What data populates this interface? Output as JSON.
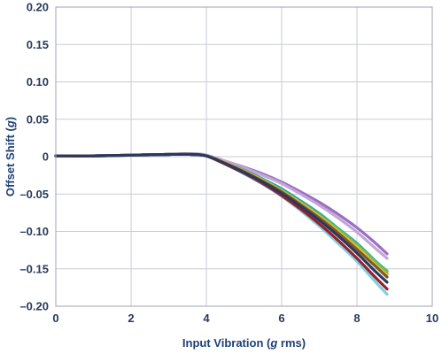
{
  "chart_data": {
    "type": "line",
    "title": "",
    "xlabel": {
      "prefix": "Input Vibration (",
      "var": "g",
      "suffix": " rms)"
    },
    "ylabel": {
      "prefix": "Offset Shift (",
      "var": "g",
      "suffix": ")"
    },
    "xlim": [
      0,
      10
    ],
    "ylim": [
      -0.2,
      0.2
    ],
    "x_ticks": [
      0,
      2,
      4,
      6,
      8,
      10
    ],
    "x_tick_labels": [
      "0",
      "2",
      "4",
      "6",
      "8",
      "10"
    ],
    "y_ticks": [
      0.2,
      0.15,
      0.1,
      0.05,
      0,
      -0.05,
      -0.1,
      -0.15,
      -0.2
    ],
    "y_tick_labels": [
      "0.20",
      "0.15",
      "0.10",
      "0.05",
      "0",
      "–0.05",
      "–0.10",
      "–0.15",
      "–0.20"
    ],
    "grid": true,
    "legend": "none",
    "series": [
      {
        "color": "#9a6fc0",
        "x": [
          0,
          1,
          2,
          3,
          3.6,
          4,
          4.5,
          5,
          5.5,
          6,
          6.5,
          7,
          7.5,
          8,
          8.5,
          8.8
        ],
        "y": [
          0.001,
          0.001,
          0.002,
          0.003,
          0.004,
          0.002,
          -0.006,
          -0.014,
          -0.023,
          -0.034,
          -0.047,
          -0.061,
          -0.077,
          -0.095,
          -0.116,
          -0.13
        ]
      },
      {
        "color": "#c3a5d8",
        "x": [
          0,
          1,
          2,
          3,
          3.6,
          4,
          4.5,
          5,
          5.5,
          6,
          6.5,
          7,
          7.5,
          8,
          8.5,
          8.8
        ],
        "y": [
          0.001,
          0.001,
          0.002,
          0.003,
          0.004,
          0.002,
          -0.006,
          -0.015,
          -0.025,
          -0.036,
          -0.05,
          -0.065,
          -0.082,
          -0.101,
          -0.123,
          -0.136
        ]
      },
      {
        "color": "#1fa6a8",
        "x": [
          0,
          1,
          2,
          3,
          3.6,
          4,
          4.5,
          5,
          5.5,
          6,
          6.5,
          7,
          7.5,
          8,
          8.5,
          8.8
        ],
        "y": [
          0.001,
          0.001,
          0.002,
          0.003,
          0.003,
          0.001,
          -0.008,
          -0.018,
          -0.03,
          -0.043,
          -0.059,
          -0.076,
          -0.096,
          -0.116,
          -0.14,
          -0.153
        ]
      },
      {
        "color": "#1e6ea0",
        "x": [
          0,
          1,
          2,
          3,
          3.6,
          4,
          4.5,
          5,
          5.5,
          6,
          6.5,
          7,
          7.5,
          8,
          8.5,
          8.8
        ],
        "y": [
          0.001,
          0.001,
          0.002,
          0.003,
          0.003,
          0.001,
          -0.008,
          -0.019,
          -0.031,
          -0.045,
          -0.061,
          -0.079,
          -0.099,
          -0.12,
          -0.144,
          -0.157
        ]
      },
      {
        "color": "#6cc24a",
        "x": [
          0,
          1,
          2,
          3,
          3.6,
          4,
          4.5,
          5,
          5.5,
          6,
          6.5,
          7,
          7.5,
          8,
          8.5,
          8.8
        ],
        "y": [
          0.001,
          0.001,
          0.002,
          0.003,
          0.003,
          0.001,
          -0.008,
          -0.019,
          -0.031,
          -0.045,
          -0.061,
          -0.078,
          -0.097,
          -0.118,
          -0.141,
          -0.154
        ]
      },
      {
        "color": "#f2b632",
        "x": [
          0,
          1,
          2,
          3,
          3.6,
          4,
          4.5,
          5,
          5.5,
          6,
          6.5,
          7,
          7.5,
          8,
          8.5,
          8.8
        ],
        "y": [
          0.001,
          0.001,
          0.002,
          0.003,
          0.003,
          0.001,
          -0.008,
          -0.019,
          -0.032,
          -0.046,
          -0.062,
          -0.08,
          -0.1,
          -0.121,
          -0.145,
          -0.158
        ]
      },
      {
        "color": "#7a5a2e",
        "x": [
          0,
          1,
          2,
          3,
          3.6,
          4,
          4.5,
          5,
          5.5,
          6,
          6.5,
          7,
          7.5,
          8,
          8.5,
          8.8
        ],
        "y": [
          0.001,
          0.001,
          0.002,
          0.003,
          0.003,
          0.001,
          -0.009,
          -0.02,
          -0.033,
          -0.047,
          -0.064,
          -0.082,
          -0.102,
          -0.124,
          -0.147,
          -0.161
        ]
      },
      {
        "color": "#7fd0e0",
        "x": [
          0,
          1,
          2,
          3,
          3.6,
          4,
          4.5,
          5,
          5.5,
          6,
          6.5,
          7,
          7.5,
          8,
          8.5,
          8.8
        ],
        "y": [
          0.001,
          0.001,
          0.002,
          0.003,
          0.003,
          0.001,
          -0.01,
          -0.023,
          -0.037,
          -0.053,
          -0.072,
          -0.093,
          -0.116,
          -0.14,
          -0.168,
          -0.184
        ]
      },
      {
        "color": "#9c1f2e",
        "x": [
          0,
          1,
          2,
          3,
          3.6,
          4,
          4.5,
          5,
          5.5,
          6,
          6.5,
          7,
          7.5,
          8,
          8.5,
          8.8
        ],
        "y": [
          0.001,
          0.001,
          0.002,
          0.003,
          0.003,
          0.001,
          -0.01,
          -0.022,
          -0.036,
          -0.052,
          -0.07,
          -0.09,
          -0.112,
          -0.136,
          -0.162,
          -0.177
        ]
      },
      {
        "color": "#2a3a5c",
        "x": [
          0,
          1,
          2,
          3,
          3.6,
          4,
          4.5,
          5,
          5.5,
          6,
          6.5,
          7,
          7.5,
          8,
          8.5,
          8.8
        ],
        "y": [
          0.001,
          0.001,
          0.002,
          0.003,
          0.003,
          0.001,
          -0.009,
          -0.021,
          -0.034,
          -0.049,
          -0.066,
          -0.085,
          -0.106,
          -0.129,
          -0.154,
          -0.168
        ]
      }
    ]
  }
}
